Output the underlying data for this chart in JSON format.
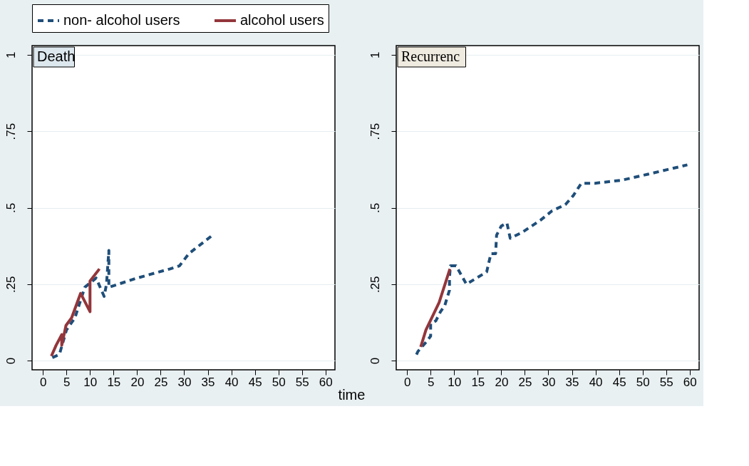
{
  "chart_data": [
    {
      "type": "line",
      "title": "Death",
      "xlabel": "time",
      "legend": "top",
      "xlim": [
        -2.3,
        62
      ],
      "xticks": [
        0,
        5,
        10,
        15,
        20,
        25,
        30,
        35,
        40,
        45,
        50,
        55,
        60
      ],
      "ylim": [
        -0.03,
        1.03
      ],
      "yticks": [
        0,
        {
          "value": 0.25,
          "label": ".25"
        },
        {
          "value": 0.5,
          "label": ".5"
        },
        {
          "value": 0.75,
          "label": ".75"
        },
        1
      ],
      "grid": "y",
      "series": [
        {
          "name": "non- alcohol users",
          "color": "#1f4e79",
          "line_style": "dashed",
          "x": [
            2,
            3.5,
            5,
            6.8,
            8.9,
            11.3,
            13,
            13.5,
            14,
            14,
            20,
            27,
            29,
            31,
            36
          ],
          "values": [
            0.01,
            0.02,
            0.1,
            0.14,
            0.24,
            0.27,
            0.21,
            0.25,
            0.36,
            0.24,
            0.27,
            0.3,
            0.31,
            0.35,
            0.41
          ]
        },
        {
          "name": "alcohol users",
          "color": "#93363b",
          "line_style": "solid",
          "x": [
            1.8,
            2.8,
            4,
            4,
            4.9,
            6.1,
            8,
            10,
            10,
            12
          ],
          "values": [
            0.015,
            0.05,
            0.085,
            0.05,
            0.115,
            0.14,
            0.22,
            0.16,
            0.26,
            0.3
          ]
        }
      ]
    },
    {
      "type": "line",
      "title": "Recurrenc",
      "legend": "top",
      "xlim": [
        -2.3,
        62
      ],
      "xticks": [
        0,
        5,
        10,
        15,
        20,
        25,
        30,
        35,
        40,
        45,
        50,
        55,
        60
      ],
      "ylim": [
        -0.03,
        1.03
      ],
      "yticks": [
        0,
        {
          "value": 0.25,
          "label": ".25"
        },
        {
          "value": 0.5,
          "label": ".5"
        },
        {
          "value": 0.75,
          "label": ".75"
        },
        1
      ],
      "grid": "y",
      "series": [
        {
          "name": "non- alcohol users",
          "color": "#1f4e79",
          "line_style": "dashed",
          "x": [
            2,
            2.3,
            4,
            5,
            5,
            6.1,
            7.1,
            8,
            9,
            9,
            9.2,
            10.4,
            12.6,
            16.9,
            17.8,
            18.8,
            19,
            20,
            21.2,
            21.9,
            24.5,
            28.4,
            30.8,
            33.6,
            35.3,
            37,
            39.9,
            45.6,
            51.3,
            59.5
          ],
          "values": [
            0.02,
            0.03,
            0.06,
            0.08,
            0.12,
            0.13,
            0.16,
            0.18,
            0.23,
            0.27,
            0.31,
            0.31,
            0.25,
            0.29,
            0.35,
            0.35,
            0.41,
            0.44,
            0.45,
            0.4,
            0.42,
            0.46,
            0.49,
            0.51,
            0.54,
            0.58,
            0.58,
            0.59,
            0.61,
            0.64
          ]
        },
        {
          "name": "alcohol users",
          "color": "#93363b",
          "line_style": "solid",
          "x": [
            2.9,
            4,
            6.8,
            9.1
          ],
          "values": [
            0.045,
            0.1,
            0.19,
            0.3
          ]
        }
      ]
    }
  ]
}
